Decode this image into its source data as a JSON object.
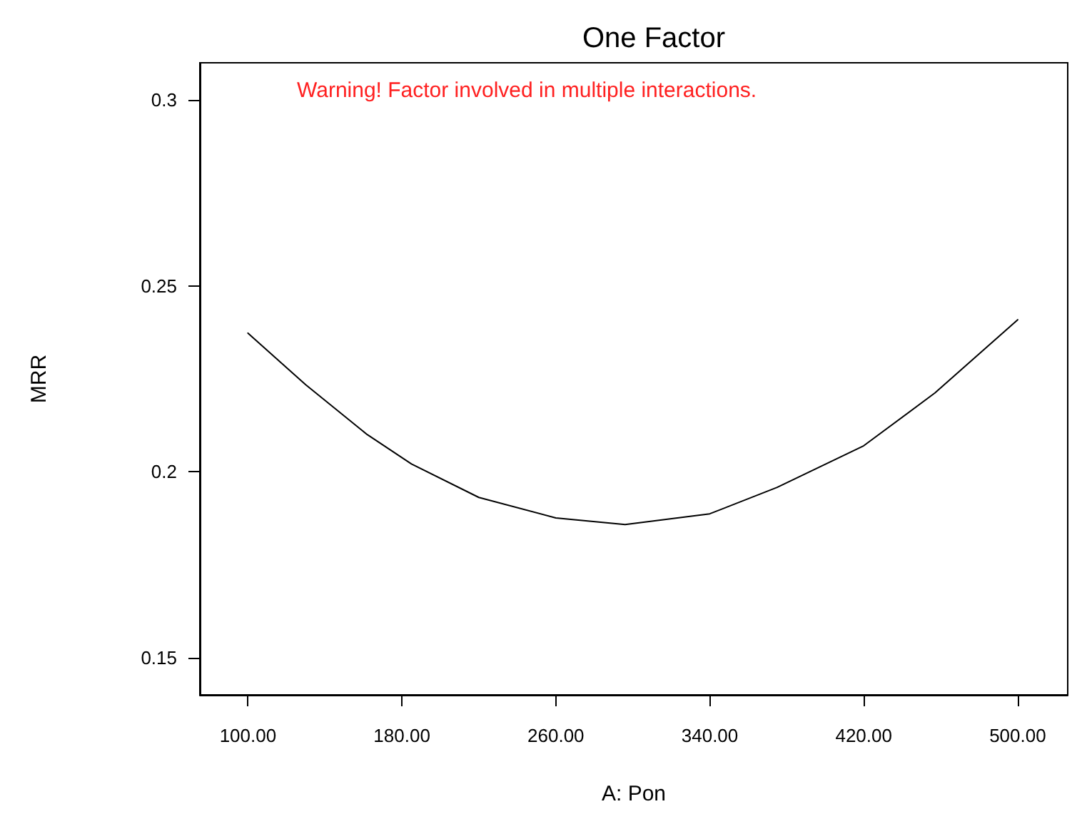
{
  "chart_data": {
    "type": "line",
    "title": "One Factor",
    "xlabel": "A: Pon",
    "ylabel": "MRR",
    "annotations": [
      "Warning! Factor involved in multiple interactions."
    ],
    "x": [
      100,
      130,
      162,
      185,
      220,
      260,
      296,
      340,
      375,
      420,
      457,
      500
    ],
    "series": [
      {
        "color": "#000000",
        "values": [
          0.2373,
          0.2234,
          0.21,
          0.2021,
          0.1931,
          0.1876,
          0.1858,
          0.1887,
          0.1958,
          0.207,
          0.2212,
          0.2409
        ]
      }
    ],
    "xlim": [
      75,
      526
    ],
    "xticks": [
      {
        "value": 100,
        "label": "100.00"
      },
      {
        "value": 180,
        "label": "180.00"
      },
      {
        "value": 260,
        "label": "260.00"
      },
      {
        "value": 340,
        "label": "340.00"
      },
      {
        "value": 420,
        "label": "420.00"
      },
      {
        "value": 500,
        "label": "500.00"
      }
    ],
    "ylim": [
      0.14,
      0.31
    ],
    "yticks": [
      0.15,
      0.2,
      0.25,
      0.3
    ],
    "grid": false,
    "marker": "none",
    "line_style": "solid"
  }
}
